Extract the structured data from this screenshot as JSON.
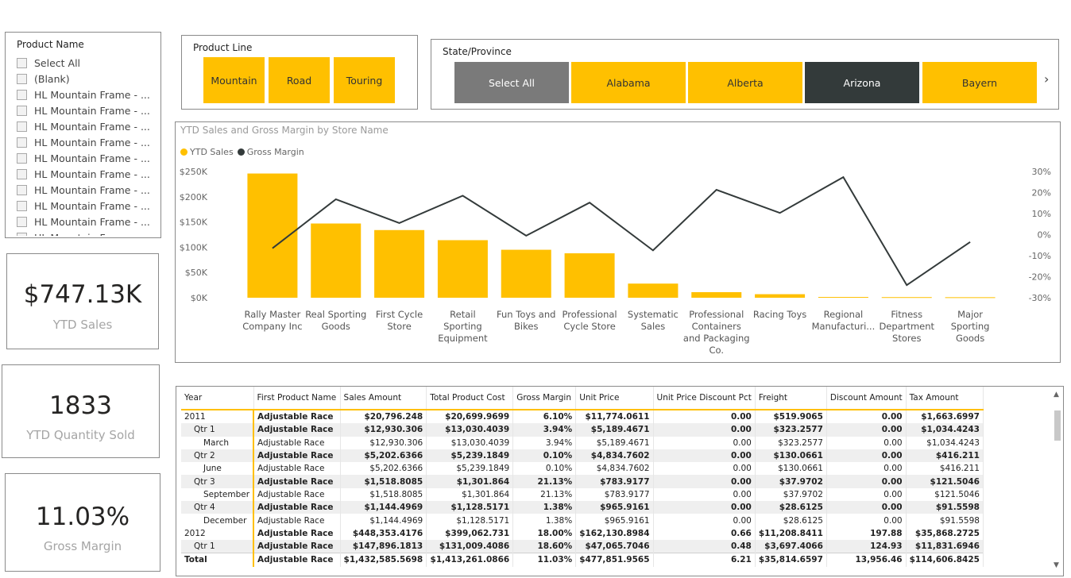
{
  "product_slicer": {
    "title": "Product Name",
    "items": [
      "Select All",
      "(Blank)",
      "HL Mountain Frame - ...",
      "HL Mountain Frame - ...",
      "HL Mountain Frame - ...",
      "HL Mountain Frame - ...",
      "HL Mountain Frame - ...",
      "HL Mountain Frame - ...",
      "HL Mountain Frame - ...",
      "HL Mountain Frame - ...",
      "HL Mountain Frame - ...",
      "HL Mountain Frame"
    ]
  },
  "product_line": {
    "title": "Product Line",
    "options": [
      "Mountain",
      "Road",
      "Touring"
    ]
  },
  "state": {
    "title": "State/Province",
    "options": [
      "Select All",
      "Alabama",
      "Alberta",
      "Arizona",
      "Bayern"
    ],
    "next": "›"
  },
  "kpis": [
    {
      "value": "$747.13K",
      "label": "YTD Sales"
    },
    {
      "value": "1833",
      "label": "YTD Quantity Sold"
    },
    {
      "value": "11.03%",
      "label": "Gross Margin"
    }
  ],
  "colors": {
    "accent": "#FFC000",
    "line": "#333a3a",
    "selected": "#333a3a",
    "select_all": "#7a7a7a"
  },
  "chart_data": {
    "type": "bar",
    "title": "YTD Sales and Gross Margin by Store Name",
    "legend": [
      "YTD Sales",
      "Gross Margin"
    ],
    "legend_position": "top-left",
    "categories": [
      [
        "Rally Master",
        "Company Inc"
      ],
      [
        "Real Sporting",
        "Goods"
      ],
      [
        "First Cycle",
        "Store"
      ],
      [
        "Retail",
        "Sporting",
        "Equipment"
      ],
      [
        "Fun Toys and",
        "Bikes"
      ],
      [
        "Professional",
        "Cycle Store"
      ],
      [
        "Systematic",
        "Sales"
      ],
      [
        "Professional",
        "Containers",
        "and Packaging",
        "Co."
      ],
      [
        "Racing Toys"
      ],
      [
        "Regional",
        "Manufacturi..."
      ],
      [
        "Fitness",
        "Department",
        "Stores"
      ],
      [
        "Major",
        "Sporting",
        "Goods"
      ]
    ],
    "series": [
      {
        "name": "YTD Sales",
        "axis": "left",
        "values": [
          246000,
          147000,
          134000,
          114000,
          95000,
          88000,
          28000,
          11000,
          7000,
          1500,
          1200,
          1000
        ]
      },
      {
        "name": "Gross Margin",
        "axis": "right",
        "values": [
          -6.5,
          16.8,
          5.5,
          18.5,
          -0.5,
          15.2,
          -7.5,
          21.3,
          10.3,
          27.3,
          -24,
          -3.5
        ]
      }
    ],
    "y_left": {
      "min": 0,
      "max": 250000,
      "ticks": [
        "$0K",
        "$50K",
        "$100K",
        "$150K",
        "$200K",
        "$250K"
      ]
    },
    "y_right": {
      "min": -30,
      "max": 30,
      "ticks": [
        "-30%",
        "-20%",
        "-10%",
        "0%",
        "10%",
        "20%",
        "30%"
      ]
    }
  },
  "table": {
    "columns": [
      "Year",
      "First Product Name",
      "Sales Amount",
      "Total Product Cost",
      "Gross Margin",
      "Unit Price",
      "Unit Price Discount Pct",
      "Freight",
      "Discount Amount",
      "Tax Amount"
    ],
    "rows": [
      {
        "level": 0,
        "year": "2011",
        "cells": [
          "Adjustable Race",
          "$20,796.248",
          "$20,699.9699",
          "6.10%",
          "$11,774.0611",
          "0.00",
          "$519.9065",
          "0.00",
          "$1,663.6997"
        ]
      },
      {
        "level": 1,
        "year": "Qtr 1",
        "cells": [
          "Adjustable Race",
          "$12,930.306",
          "$13,030.4039",
          "3.94%",
          "$5,189.4671",
          "0.00",
          "$323.2577",
          "0.00",
          "$1,034.4243"
        ]
      },
      {
        "level": 2,
        "year": "March",
        "cells": [
          "Adjustable Race",
          "$12,930.306",
          "$13,030.4039",
          "3.94%",
          "$5,189.4671",
          "0.00",
          "$323.2577",
          "0.00",
          "$1,034.4243"
        ]
      },
      {
        "level": 1,
        "year": "Qtr 2",
        "cells": [
          "Adjustable Race",
          "$5,202.6366",
          "$5,239.1849",
          "0.10%",
          "$4,834.7602",
          "0.00",
          "$130.0661",
          "0.00",
          "$416.211"
        ]
      },
      {
        "level": 2,
        "year": "June",
        "cells": [
          "Adjustable Race",
          "$5,202.6366",
          "$5,239.1849",
          "0.10%",
          "$4,834.7602",
          "0.00",
          "$130.0661",
          "0.00",
          "$416.211"
        ]
      },
      {
        "level": 1,
        "year": "Qtr 3",
        "cells": [
          "Adjustable Race",
          "$1,518.8085",
          "$1,301.864",
          "21.13%",
          "$783.9177",
          "0.00",
          "$37.9702",
          "0.00",
          "$121.5046"
        ]
      },
      {
        "level": 2,
        "year": "September",
        "cells": [
          "Adjustable Race",
          "$1,518.8085",
          "$1,301.864",
          "21.13%",
          "$783.9177",
          "0.00",
          "$37.9702",
          "0.00",
          "$121.5046"
        ]
      },
      {
        "level": 1,
        "year": "Qtr 4",
        "cells": [
          "Adjustable Race",
          "$1,144.4969",
          "$1,128.5171",
          "1.38%",
          "$965.9161",
          "0.00",
          "$28.6125",
          "0.00",
          "$91.5598"
        ]
      },
      {
        "level": 2,
        "year": "December",
        "cells": [
          "Adjustable Race",
          "$1,144.4969",
          "$1,128.5171",
          "1.38%",
          "$965.9161",
          "0.00",
          "$28.6125",
          "0.00",
          "$91.5598"
        ]
      },
      {
        "level": 0,
        "year": "2012",
        "cells": [
          "Adjustable Race",
          "$448,353.4176",
          "$399,062.731",
          "18.00%",
          "$162,130.8984",
          "0.66",
          "$11,208.8411",
          "197.88",
          "$35,868.2725"
        ]
      },
      {
        "level": 1,
        "year": "Qtr 1",
        "cells": [
          "Adjustable Race",
          "$147,896.1813",
          "$131,009.4086",
          "18.60%",
          "$47,065.7046",
          "0.48",
          "$3,697.4066",
          "124.93",
          "$11,831.6946"
        ]
      }
    ],
    "total": {
      "label": "Total",
      "cells": [
        "Adjustable Race",
        "$1,432,585.5698",
        "$1,413,261.0866",
        "11.03%",
        "$477,851.9565",
        "6.21",
        "$35,814.6597",
        "13,956.46",
        "$114,606.8425"
      ]
    }
  }
}
